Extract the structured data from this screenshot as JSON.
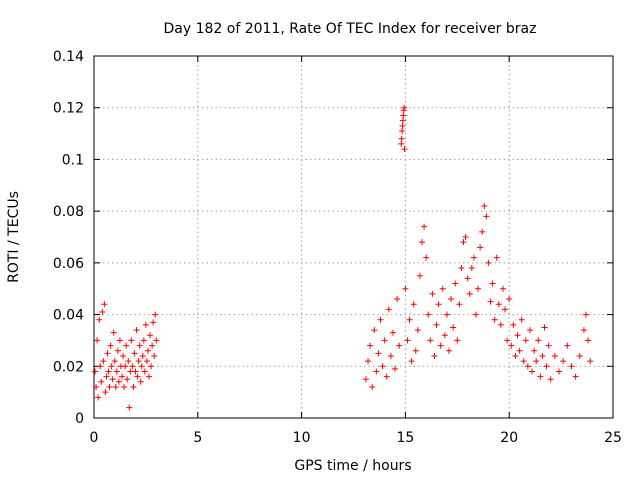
{
  "chart_data": {
    "type": "scatter",
    "title": "Day 182 of 2011, Rate Of TEC Index for receiver braz",
    "xlabel": "GPS time / hours",
    "ylabel": "ROTI / TECUs",
    "xlim": [
      0,
      25
    ],
    "ylim": [
      0,
      0.14
    ],
    "xticks": [
      0,
      5,
      10,
      15,
      20,
      25
    ],
    "yticks": [
      0,
      0.02,
      0.04,
      0.06,
      0.08,
      0.1,
      0.12,
      0.14
    ],
    "xtick_labels": [
      "0",
      "5",
      "10",
      "15",
      "20",
      "25"
    ],
    "ytick_labels": [
      "0",
      "0.02",
      "0.04",
      "0.06",
      "0.08",
      "0.1",
      "0.12",
      "0.14"
    ],
    "grid": true,
    "marker": "plus",
    "color": "#ff0000",
    "series": [
      {
        "points": [
          [
            0.05,
            0.018
          ],
          [
            0.1,
            0.012
          ],
          [
            0.15,
            0.03
          ],
          [
            0.2,
            0.008
          ],
          [
            0.25,
            0.038
          ],
          [
            0.3,
            0.02
          ],
          [
            0.35,
            0.014
          ],
          [
            0.4,
            0.041
          ],
          [
            0.45,
            0.022
          ],
          [
            0.5,
            0.044
          ],
          [
            0.55,
            0.01
          ],
          [
            0.6,
            0.016
          ],
          [
            0.65,
            0.025
          ],
          [
            0.7,
            0.018
          ],
          [
            0.75,
            0.012
          ],
          [
            0.8,
            0.028
          ],
          [
            0.85,
            0.02
          ],
          [
            0.9,
            0.015
          ],
          [
            0.95,
            0.033
          ],
          [
            1.0,
            0.022
          ],
          [
            1.05,
            0.012
          ],
          [
            1.1,
            0.018
          ],
          [
            1.15,
            0.026
          ],
          [
            1.2,
            0.014
          ],
          [
            1.25,
            0.03
          ],
          [
            1.3,
            0.02
          ],
          [
            1.35,
            0.016
          ],
          [
            1.4,
            0.024
          ],
          [
            1.45,
            0.012
          ],
          [
            1.5,
            0.02
          ],
          [
            1.55,
            0.028
          ],
          [
            1.6,
            0.015
          ],
          [
            1.65,
            0.022
          ],
          [
            1.7,
            0.004
          ],
          [
            1.75,
            0.018
          ],
          [
            1.8,
            0.03
          ],
          [
            1.85,
            0.02
          ],
          [
            1.9,
            0.012
          ],
          [
            1.95,
            0.025
          ],
          [
            2.0,
            0.018
          ],
          [
            2.05,
            0.034
          ],
          [
            2.1,
            0.016
          ],
          [
            2.15,
            0.022
          ],
          [
            2.2,
            0.028
          ],
          [
            2.25,
            0.014
          ],
          [
            2.3,
            0.02
          ],
          [
            2.35,
            0.024
          ],
          [
            2.4,
            0.03
          ],
          [
            2.45,
            0.018
          ],
          [
            2.5,
            0.036
          ],
          [
            2.55,
            0.022
          ],
          [
            2.6,
            0.026
          ],
          [
            2.65,
            0.016
          ],
          [
            2.7,
            0.032
          ],
          [
            2.75,
            0.02
          ],
          [
            2.8,
            0.028
          ],
          [
            2.85,
            0.037
          ],
          [
            2.9,
            0.024
          ],
          [
            2.95,
            0.04
          ],
          [
            3.0,
            0.03
          ],
          [
            13.1,
            0.015
          ],
          [
            13.2,
            0.022
          ],
          [
            13.3,
            0.028
          ],
          [
            13.4,
            0.012
          ],
          [
            13.5,
            0.034
          ],
          [
            13.6,
            0.018
          ],
          [
            13.7,
            0.025
          ],
          [
            13.8,
            0.038
          ],
          [
            13.9,
            0.02
          ],
          [
            14.0,
            0.03
          ],
          [
            14.1,
            0.016
          ],
          [
            14.2,
            0.042
          ],
          [
            14.3,
            0.024
          ],
          [
            14.4,
            0.033
          ],
          [
            14.5,
            0.019
          ],
          [
            14.6,
            0.046
          ],
          [
            14.7,
            0.028
          ],
          [
            14.8,
            0.106
          ],
          [
            14.82,
            0.108
          ],
          [
            14.84,
            0.111
          ],
          [
            14.86,
            0.113
          ],
          [
            14.88,
            0.115
          ],
          [
            14.9,
            0.117
          ],
          [
            14.92,
            0.119
          ],
          [
            14.94,
            0.12
          ],
          [
            14.96,
            0.104
          ],
          [
            15.0,
            0.05
          ],
          [
            15.1,
            0.03
          ],
          [
            15.2,
            0.038
          ],
          [
            15.3,
            0.022
          ],
          [
            15.4,
            0.044
          ],
          [
            15.5,
            0.026
          ],
          [
            15.6,
            0.034
          ],
          [
            15.7,
            0.055
          ],
          [
            15.8,
            0.068
          ],
          [
            15.9,
            0.074
          ],
          [
            16.0,
            0.062
          ],
          [
            16.1,
            0.04
          ],
          [
            16.2,
            0.03
          ],
          [
            16.3,
            0.048
          ],
          [
            16.4,
            0.024
          ],
          [
            16.5,
            0.036
          ],
          [
            16.6,
            0.044
          ],
          [
            16.7,
            0.028
          ],
          [
            16.8,
            0.05
          ],
          [
            16.9,
            0.032
          ],
          [
            17.0,
            0.04
          ],
          [
            17.1,
            0.026
          ],
          [
            17.2,
            0.046
          ],
          [
            17.3,
            0.035
          ],
          [
            17.4,
            0.052
          ],
          [
            17.5,
            0.03
          ],
          [
            17.6,
            0.044
          ],
          [
            17.7,
            0.058
          ],
          [
            17.8,
            0.068
          ],
          [
            17.9,
            0.07
          ],
          [
            18.0,
            0.054
          ],
          [
            18.1,
            0.048
          ],
          [
            18.2,
            0.058
          ],
          [
            18.3,
            0.062
          ],
          [
            18.4,
            0.04
          ],
          [
            18.5,
            0.05
          ],
          [
            18.6,
            0.066
          ],
          [
            18.7,
            0.072
          ],
          [
            18.8,
            0.082
          ],
          [
            18.9,
            0.078
          ],
          [
            19.0,
            0.06
          ],
          [
            19.1,
            0.045
          ],
          [
            19.2,
            0.052
          ],
          [
            19.3,
            0.038
          ],
          [
            19.4,
            0.062
          ],
          [
            19.5,
            0.044
          ],
          [
            19.6,
            0.036
          ],
          [
            19.7,
            0.05
          ],
          [
            19.8,
            0.042
          ],
          [
            19.9,
            0.03
          ],
          [
            20.0,
            0.046
          ],
          [
            20.1,
            0.028
          ],
          [
            20.2,
            0.036
          ],
          [
            20.3,
            0.024
          ],
          [
            20.4,
            0.032
          ],
          [
            20.5,
            0.026
          ],
          [
            20.6,
            0.038
          ],
          [
            20.7,
            0.022
          ],
          [
            20.8,
            0.03
          ],
          [
            20.9,
            0.02
          ],
          [
            21.0,
            0.034
          ],
          [
            21.1,
            0.018
          ],
          [
            21.2,
            0.026
          ],
          [
            21.3,
            0.022
          ],
          [
            21.4,
            0.03
          ],
          [
            21.5,
            0.016
          ],
          [
            21.6,
            0.024
          ],
          [
            21.7,
            0.035
          ],
          [
            21.8,
            0.02
          ],
          [
            21.9,
            0.028
          ],
          [
            22.0,
            0.015
          ],
          [
            22.2,
            0.024
          ],
          [
            22.4,
            0.018
          ],
          [
            22.6,
            0.022
          ],
          [
            22.8,
            0.028
          ],
          [
            23.0,
            0.02
          ],
          [
            23.2,
            0.016
          ],
          [
            23.4,
            0.024
          ],
          [
            23.6,
            0.034
          ],
          [
            23.7,
            0.04
          ],
          [
            23.8,
            0.03
          ],
          [
            23.9,
            0.022
          ]
        ]
      }
    ]
  }
}
